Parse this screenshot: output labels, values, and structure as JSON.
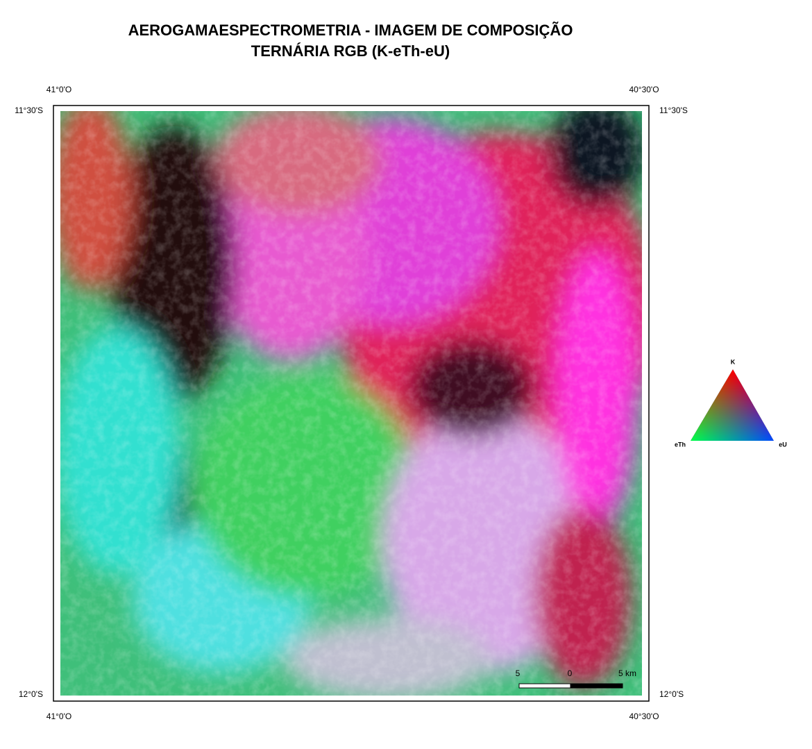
{
  "header": {
    "title_lines": [
      "AEROGAMAESPECTROMETRIA - IMAGEM DE COMPOSIÇÃO",
      "TERNÁRIA RGB (K-eTh-eU)"
    ]
  },
  "map": {
    "top_left_lon": "41°0'O",
    "top_right_lon": "40°30'O",
    "left_top_lat": "11°30'S",
    "right_top_lat": "11°30'S",
    "left_bottom_lat": "12°0'S",
    "right_bottom_lat": "12°0'S",
    "bottom_left_lon": "41°0'O",
    "bottom_right_lon": "40°30'O"
  },
  "legend": {
    "top": "K",
    "left": "eTh",
    "right": "eU"
  },
  "scale_bar": {
    "left": "5",
    "middle": "0",
    "right": "5 km"
  }
}
